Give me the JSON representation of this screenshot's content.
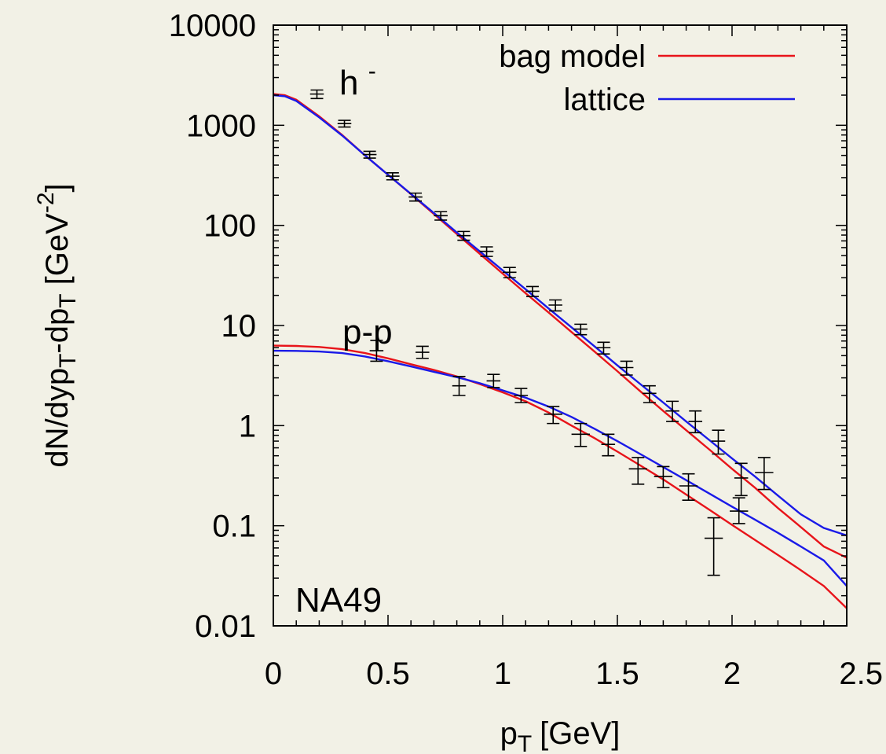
{
  "chart_data": {
    "type": "line",
    "xlabel": "p",
    "xlabel_sub": "T",
    "xlabel_unit": "[GeV]",
    "ylabel_parts": {
      "a": "dN/dyp",
      "a_sub": "T",
      "b": "-dp",
      "b_sub": "T",
      "c": " [GeV",
      "c_sup": "-2",
      "d": "]"
    },
    "xlim": [
      0,
      2.5
    ],
    "ylim": [
      0.01,
      10000
    ],
    "yscale": "log",
    "grid": false,
    "legend_position": "top-right",
    "x_ticks": [
      {
        "value": 0,
        "label": "0"
      },
      {
        "value": 0.5,
        "label": "0.5"
      },
      {
        "value": 1,
        "label": "1"
      },
      {
        "value": 1.5,
        "label": "1.5"
      },
      {
        "value": 2,
        "label": "2"
      },
      {
        "value": 2.5,
        "label": "2.5"
      }
    ],
    "y_ticks": [
      {
        "value": 10000,
        "label": "10000"
      },
      {
        "value": 1000,
        "label": "1000"
      },
      {
        "value": 100,
        "label": "100"
      },
      {
        "value": 10,
        "label": "10"
      },
      {
        "value": 1,
        "label": "1"
      },
      {
        "value": 0.1,
        "label": "0.1"
      },
      {
        "value": 0.01,
        "label": "0.01"
      }
    ],
    "annotations": {
      "h_label": "h",
      "h_sup": "-",
      "pp_label": "p-p",
      "experiment": "NA49"
    },
    "series": [
      {
        "name": "bag model",
        "color": "#e8141a",
        "curves": [
          {
            "x": [
              0,
              0.05,
              0.1,
              0.2,
              0.3,
              0.4,
              0.5,
              0.6,
              0.7,
              0.8,
              0.9,
              1.0,
              1.1,
              1.2,
              1.3,
              1.4,
              1.5,
              1.6,
              1.7,
              1.8,
              1.9,
              2.0,
              2.1,
              2.2,
              2.3,
              2.4,
              2.5
            ],
            "y": [
              2050,
              2000,
              1800,
              1230,
              800,
              500,
              320,
              205,
              130,
              82,
              52,
              33,
              21,
              13.5,
              8.6,
              5.5,
              3.5,
              2.2,
              1.4,
              0.9,
              0.58,
              0.37,
              0.24,
              0.15,
              0.097,
              0.062,
              0.048
            ]
          },
          {
            "x": [
              0,
              0.1,
              0.2,
              0.3,
              0.4,
              0.5,
              0.6,
              0.7,
              0.8,
              0.9,
              1.0,
              1.1,
              1.2,
              1.3,
              1.4,
              1.5,
              1.6,
              1.7,
              1.8,
              1.9,
              2.0,
              2.1,
              2.2,
              2.3,
              2.4,
              2.5
            ],
            "y": [
              6.3,
              6.25,
              6.1,
              5.8,
              5.3,
              4.7,
              4.1,
              3.6,
              3.1,
              2.6,
              2.15,
              1.75,
              1.35,
              1.0,
              0.75,
              0.55,
              0.4,
              0.29,
              0.205,
              0.145,
              0.102,
              0.072,
              0.051,
              0.036,
              0.025,
              0.015
            ]
          }
        ]
      },
      {
        "name": "lattice",
        "color": "#1a1ae8",
        "curves": [
          {
            "x": [
              0,
              0.05,
              0.1,
              0.2,
              0.3,
              0.4,
              0.5,
              0.6,
              0.7,
              0.8,
              0.9,
              1.0,
              1.1,
              1.2,
              1.3,
              1.4,
              1.5,
              1.6,
              1.7,
              1.8,
              1.9,
              2.0,
              2.1,
              2.2,
              2.3,
              2.4,
              2.5
            ],
            "y": [
              2000,
              1950,
              1750,
              1200,
              790,
              500,
              320,
              206,
              133,
              85,
              55,
              35.5,
              23,
              14.8,
              9.6,
              6.2,
              4.0,
              2.6,
              1.7,
              1.1,
              0.72,
              0.47,
              0.31,
              0.2,
              0.13,
              0.095,
              0.08
            ]
          },
          {
            "x": [
              0,
              0.1,
              0.2,
              0.3,
              0.4,
              0.5,
              0.6,
              0.7,
              0.8,
              0.9,
              1.0,
              1.1,
              1.2,
              1.3,
              1.4,
              1.5,
              1.6,
              1.7,
              1.8,
              1.9,
              2.0,
              2.1,
              2.2,
              2.3,
              2.4,
              2.5
            ],
            "y": [
              5.6,
              5.58,
              5.5,
              5.3,
              4.9,
              4.4,
              3.9,
              3.45,
              3.05,
              2.65,
              2.25,
              1.9,
              1.55,
              1.22,
              0.93,
              0.7,
              0.52,
              0.385,
              0.285,
              0.21,
              0.155,
              0.115,
              0.085,
              0.062,
              0.045,
              0.025
            ]
          }
        ]
      }
    ],
    "data_points": [
      {
        "group": "h-",
        "points": [
          {
            "x": 0.19,
            "y": 2050,
            "ylo": 1850,
            "yhi": 2250,
            "xerr": 0.03
          },
          {
            "x": 0.31,
            "y": 1040,
            "ylo": 960,
            "yhi": 1120,
            "xerr": 0.03
          },
          {
            "x": 0.42,
            "y": 510,
            "ylo": 470,
            "yhi": 550,
            "xerr": 0.03
          },
          {
            "x": 0.52,
            "y": 310,
            "ylo": 285,
            "yhi": 335,
            "xerr": 0.03
          },
          {
            "x": 0.62,
            "y": 192,
            "ylo": 175,
            "yhi": 210,
            "xerr": 0.03
          },
          {
            "x": 0.73,
            "y": 125,
            "ylo": 113,
            "yhi": 137,
            "xerr": 0.03
          },
          {
            "x": 0.83,
            "y": 79,
            "ylo": 71,
            "yhi": 87,
            "xerr": 0.03
          },
          {
            "x": 0.93,
            "y": 55,
            "ylo": 49,
            "yhi": 61,
            "xerr": 0.03
          },
          {
            "x": 1.03,
            "y": 34,
            "ylo": 30,
            "yhi": 38,
            "xerr": 0.03
          },
          {
            "x": 1.13,
            "y": 22,
            "ylo": 19.5,
            "yhi": 24.5,
            "xerr": 0.03
          },
          {
            "x": 1.23,
            "y": 16,
            "ylo": 14,
            "yhi": 18,
            "xerr": 0.03
          },
          {
            "x": 1.34,
            "y": 9.2,
            "ylo": 8.1,
            "yhi": 10.3,
            "xerr": 0.03
          },
          {
            "x": 1.44,
            "y": 6.0,
            "ylo": 5.2,
            "yhi": 6.8,
            "xerr": 0.03
          },
          {
            "x": 1.54,
            "y": 3.8,
            "ylo": 3.2,
            "yhi": 4.4,
            "xerr": 0.03
          },
          {
            "x": 1.64,
            "y": 2.1,
            "ylo": 1.7,
            "yhi": 2.5,
            "xerr": 0.03
          },
          {
            "x": 1.74,
            "y": 1.4,
            "ylo": 1.1,
            "yhi": 1.75,
            "xerr": 0.03
          },
          {
            "x": 1.84,
            "y": 1.1,
            "ylo": 0.85,
            "yhi": 1.4,
            "xerr": 0.03
          },
          {
            "x": 1.94,
            "y": 0.7,
            "ylo": 0.52,
            "yhi": 0.9,
            "xerr": 0.03
          },
          {
            "x": 2.04,
            "y": 0.3,
            "ylo": 0.2,
            "yhi": 0.42,
            "xerr": 0.03
          },
          {
            "x": 2.14,
            "y": 0.34,
            "ylo": 0.23,
            "yhi": 0.48,
            "xerr": 0.04
          }
        ]
      },
      {
        "group": "p-p",
        "points": [
          {
            "x": 0.45,
            "y": 5.6,
            "ylo": 4.4,
            "yhi": 7.1,
            "xerr": 0.03
          },
          {
            "x": 0.65,
            "y": 5.4,
            "ylo": 4.7,
            "yhi": 6.2,
            "xerr": 0.03
          },
          {
            "x": 0.81,
            "y": 2.5,
            "ylo": 2.0,
            "yhi": 3.1,
            "xerr": 0.03
          },
          {
            "x": 0.96,
            "y": 2.8,
            "ylo": 2.4,
            "yhi": 3.25,
            "xerr": 0.03
          },
          {
            "x": 1.08,
            "y": 2.0,
            "ylo": 1.7,
            "yhi": 2.35,
            "xerr": 0.03
          },
          {
            "x": 1.22,
            "y": 1.3,
            "ylo": 1.05,
            "yhi": 1.55,
            "xerr": 0.04
          },
          {
            "x": 1.34,
            "y": 0.82,
            "ylo": 0.62,
            "yhi": 1.05,
            "xerr": 0.04
          },
          {
            "x": 1.46,
            "y": 0.65,
            "ylo": 0.5,
            "yhi": 0.82,
            "xerr": 0.03
          },
          {
            "x": 1.59,
            "y": 0.37,
            "ylo": 0.26,
            "yhi": 0.48,
            "xerr": 0.04
          },
          {
            "x": 1.7,
            "y": 0.31,
            "ylo": 0.24,
            "yhi": 0.39,
            "xerr": 0.04
          },
          {
            "x": 1.81,
            "y": 0.25,
            "ylo": 0.18,
            "yhi": 0.33,
            "xerr": 0.04
          },
          {
            "x": 1.92,
            "y": 0.075,
            "ylo": 0.032,
            "yhi": 0.12,
            "xerr": 0.04
          },
          {
            "x": 2.03,
            "y": 0.14,
            "ylo": 0.105,
            "yhi": 0.19,
            "xerr": 0.04
          }
        ]
      }
    ]
  }
}
